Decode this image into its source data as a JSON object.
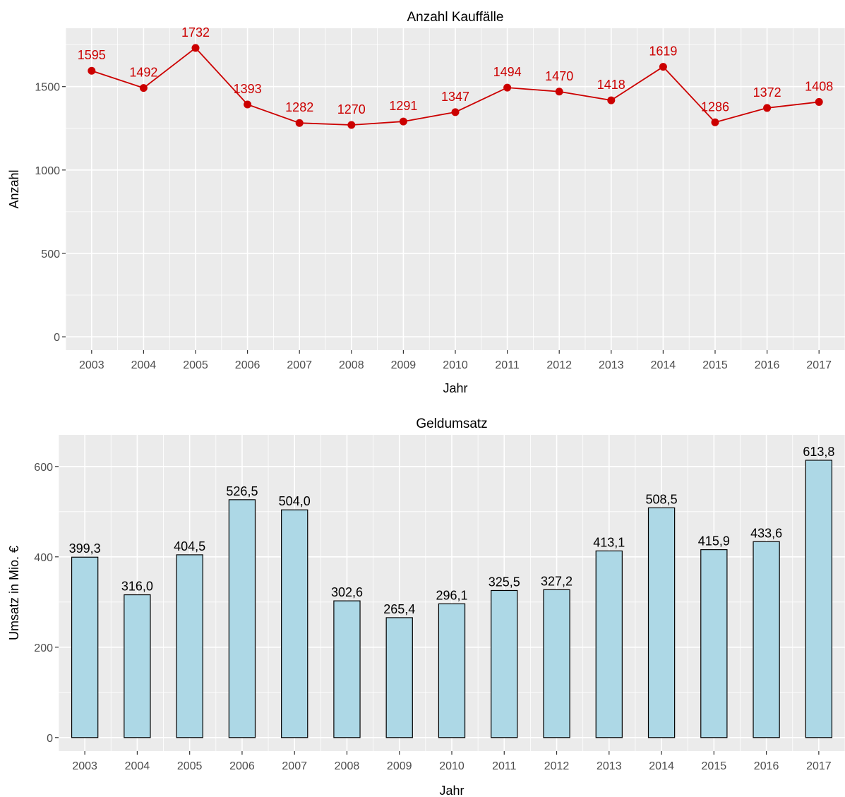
{
  "chart_data": [
    {
      "type": "line",
      "title": "Anzahl Kauffälle",
      "xlabel": "Jahr",
      "ylabel": "Anzahl",
      "categories": [
        "2003",
        "2004",
        "2005",
        "2006",
        "2007",
        "2008",
        "2009",
        "2010",
        "2011",
        "2012",
        "2013",
        "2014",
        "2015",
        "2016",
        "2017"
      ],
      "values": [
        1595,
        1492,
        1732,
        1393,
        1282,
        1270,
        1291,
        1347,
        1494,
        1470,
        1418,
        1619,
        1286,
        1372,
        1408
      ],
      "data_labels": [
        "1595",
        "1492",
        "1732",
        "1393",
        "1282",
        "1270",
        "1291",
        "1347",
        "1494",
        "1470",
        "1418",
        "1619",
        "1286",
        "1372",
        "1408"
      ],
      "yticks": [
        0,
        500,
        1000,
        1500
      ],
      "ytick_labels": [
        "0",
        "500",
        "1000",
        "1500"
      ],
      "ylim": [
        -80,
        1850
      ],
      "color": "#cc0000",
      "grid": true,
      "legend": "none"
    },
    {
      "type": "bar",
      "title": "Geldumsatz",
      "xlabel": "Jahr",
      "ylabel": "Umsatz in Mio. €",
      "categories": [
        "2003",
        "2004",
        "2005",
        "2006",
        "2007",
        "2008",
        "2009",
        "2010",
        "2011",
        "2012",
        "2013",
        "2014",
        "2015",
        "2016",
        "2017"
      ],
      "values": [
        399.3,
        316.0,
        404.5,
        526.5,
        504.0,
        302.6,
        265.4,
        296.1,
        325.5,
        327.2,
        413.1,
        508.5,
        415.9,
        433.6,
        613.8
      ],
      "data_labels": [
        "399,3",
        "316,0",
        "404,5",
        "526,5",
        "504,0",
        "302,6",
        "265,4",
        "296,1",
        "325,5",
        "327,2",
        "413,1",
        "508,5",
        "415,9",
        "433,6",
        "613,8"
      ],
      "yticks": [
        0,
        200,
        400,
        600
      ],
      "ytick_labels": [
        "0",
        "200",
        "400",
        "600"
      ],
      "ylim": [
        -30,
        670
      ],
      "bar_color": "#add8e6",
      "bar_edge_color": "#000000",
      "grid": true,
      "legend": "none"
    }
  ]
}
